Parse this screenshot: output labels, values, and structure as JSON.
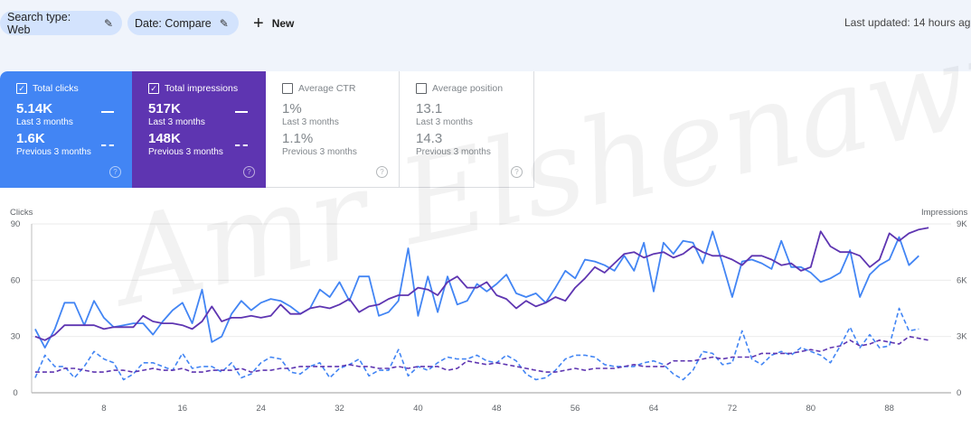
{
  "filters": {
    "search_type": "Search type: Web",
    "date": "Date: Compare",
    "edit_icon": "pencil-icon",
    "new_label": "New",
    "new_icon": "plus-icon"
  },
  "last_updated": "Last updated: 14 hours ag",
  "watermark": "Amr Elshenawy",
  "cards": [
    {
      "label": "Total clicks",
      "checked": true,
      "current": "5.14K",
      "current_period": "Last 3 months",
      "previous": "1.6K",
      "previous_period": "Previous 3 months",
      "color": "#4285f4"
    },
    {
      "label": "Total impressions",
      "checked": true,
      "current": "517K",
      "current_period": "Last 3 months",
      "previous": "148K",
      "previous_period": "Previous 3 months",
      "color": "#5e35b1"
    },
    {
      "label": "Average CTR",
      "checked": false,
      "current": "1%",
      "current_period": "Last 3 months",
      "previous": "1.1%",
      "previous_period": "Previous 3 months"
    },
    {
      "label": "Average position",
      "checked": false,
      "current": "13.1",
      "current_period": "Last 3 months",
      "previous": "14.3",
      "previous_period": "Previous 3 months"
    }
  ],
  "chart_data": {
    "type": "line",
    "left_axis_label": "Clicks",
    "right_axis_label": "Impressions",
    "left_ticks": [
      "0",
      "30",
      "60",
      "90"
    ],
    "right_ticks": [
      "0",
      "3K",
      "6K",
      "9K"
    ],
    "left_ylim": [
      0,
      90
    ],
    "right_ylim": [
      0,
      9000
    ],
    "x_ticks": [
      8,
      16,
      24,
      32,
      40,
      48,
      56,
      64,
      72,
      80,
      88
    ],
    "grid": true,
    "series": [
      {
        "axis": "left",
        "style": "solid",
        "color": "#4285f4",
        "values": [
          34,
          24,
          34,
          48,
          48,
          36,
          49,
          40,
          35,
          36,
          37,
          37,
          31,
          38,
          44,
          48,
          37,
          55,
          27,
          30,
          42,
          49,
          44,
          48,
          50,
          49,
          46,
          42,
          45,
          55,
          51,
          59,
          49,
          62,
          62,
          41,
          43,
          49,
          77,
          41,
          62,
          43,
          62,
          47,
          49,
          58,
          54,
          58,
          63,
          53,
          51,
          53,
          48,
          56,
          65,
          61,
          71,
          70,
          68,
          65,
          73,
          65,
          80,
          54,
          80,
          74,
          81,
          80,
          69,
          86,
          69,
          51,
          70,
          71,
          69,
          66,
          81,
          67,
          67,
          64,
          59,
          61,
          64,
          76,
          51,
          63,
          68,
          71,
          83,
          68,
          73
        ]
      },
      {
        "axis": "right",
        "style": "solid",
        "color": "#5e35b1",
        "values": [
          3000,
          2800,
          3100,
          3600,
          3600,
          3600,
          3600,
          3400,
          3500,
          3500,
          3500,
          4100,
          3800,
          3700,
          3700,
          3600,
          3400,
          3800,
          4600,
          3800,
          4000,
          4000,
          4100,
          4000,
          4100,
          4700,
          4200,
          4200,
          4500,
          4600,
          4500,
          4700,
          5000,
          4300,
          4600,
          4700,
          5000,
          5200,
          5200,
          5600,
          5500,
          5200,
          5900,
          6200,
          5600,
          5600,
          5900,
          5200,
          5000,
          4500,
          4900,
          4600,
          4800,
          5100,
          4900,
          5600,
          6100,
          6700,
          6400,
          6900,
          7400,
          7500,
          7200,
          7400,
          7500,
          7200,
          7400,
          7800,
          7500,
          7300,
          7300,
          7100,
          6800,
          7300,
          7300,
          7100,
          6800,
          6900,
          6500,
          6700,
          8600,
          7800,
          7500,
          7500,
          7300,
          6700,
          7100,
          8500,
          8100,
          8500,
          8700,
          8800
        ]
      },
      {
        "axis": "left",
        "style": "dashed",
        "color": "#4285f4",
        "values": [
          8,
          20,
          14,
          14,
          8,
          14,
          22,
          18,
          16,
          7,
          10,
          16,
          16,
          14,
          12,
          21,
          13,
          14,
          14,
          11,
          16,
          8,
          10,
          16,
          19,
          18,
          11,
          10,
          14,
          16,
          8,
          13,
          15,
          18,
          9,
          12,
          12,
          23,
          9,
          14,
          12,
          16,
          19,
          18,
          18,
          20,
          17,
          16,
          20,
          17,
          10,
          7,
          8,
          12,
          18,
          20,
          20,
          19,
          15,
          14,
          14,
          14,
          16,
          17,
          15,
          10,
          7,
          12,
          22,
          21,
          15,
          16,
          33,
          18,
          15,
          20,
          22,
          20,
          24,
          22,
          20,
          16,
          25,
          35,
          24,
          31,
          24,
          25,
          45,
          33,
          34
        ]
      },
      {
        "axis": "right",
        "style": "dashed",
        "color": "#5e35b1",
        "values": [
          1100,
          1100,
          1100,
          1300,
          1300,
          1200,
          1100,
          1100,
          1200,
          1200,
          1100,
          1200,
          1300,
          1200,
          1200,
          1300,
          1100,
          1100,
          1200,
          1200,
          1200,
          1300,
          1100,
          1200,
          1200,
          1300,
          1300,
          1400,
          1400,
          1400,
          1400,
          1400,
          1500,
          1400,
          1400,
          1300,
          1300,
          1400,
          1300,
          1400,
          1400,
          1400,
          1200,
          1300,
          1700,
          1600,
          1500,
          1600,
          1500,
          1400,
          1300,
          1200,
          1100,
          1100,
          1200,
          1300,
          1200,
          1300,
          1300,
          1300,
          1400,
          1500,
          1400,
          1400,
          1400,
          1700,
          1700,
          1700,
          1800,
          1900,
          1800,
          1900,
          1900,
          1900,
          2100,
          2100,
          2100,
          2100,
          2200,
          2300,
          2200,
          2400,
          2500,
          2800,
          2500,
          2600,
          2800,
          2700,
          2600,
          3000,
          2900,
          2800
        ]
      }
    ]
  }
}
